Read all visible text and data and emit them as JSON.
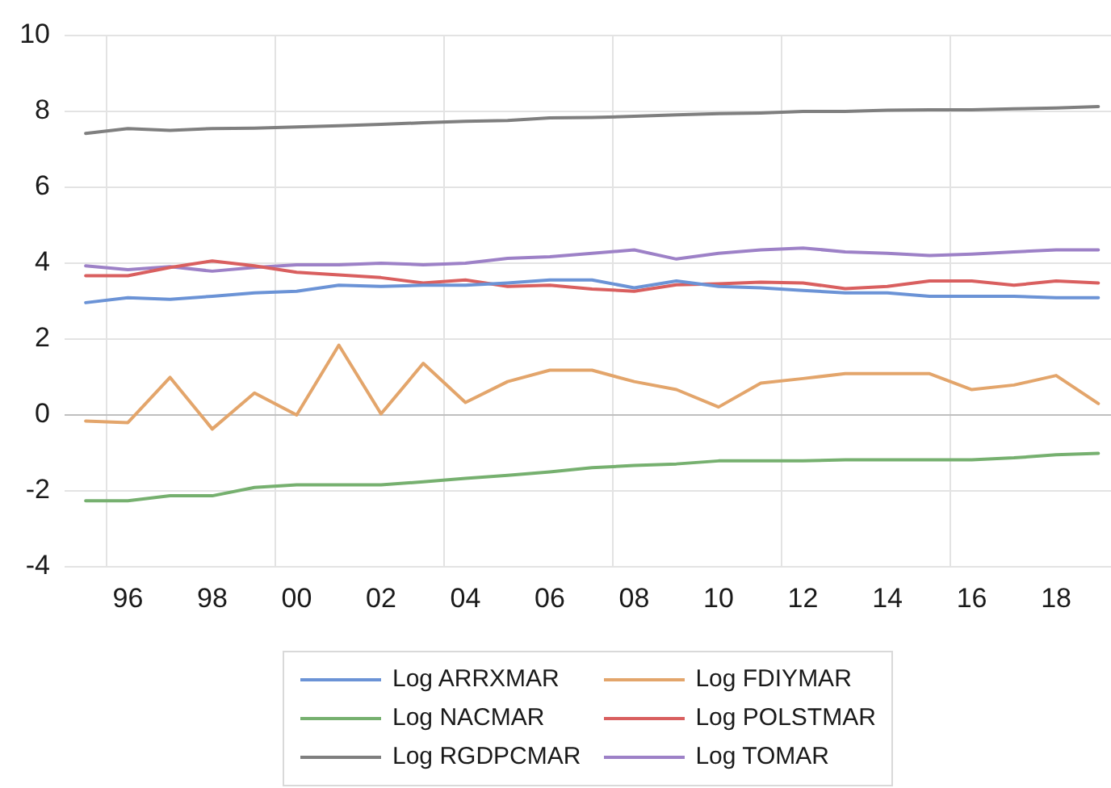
{
  "chart_data": {
    "type": "line",
    "x": [
      1995,
      1996,
      1997,
      1998,
      1999,
      2000,
      2001,
      2002,
      2003,
      2004,
      2005,
      2006,
      2007,
      2008,
      2009,
      2010,
      2011,
      2012,
      2013,
      2014,
      2015,
      2016,
      2017,
      2018,
      2019
    ],
    "xlim": [
      1994.5,
      2019.3
    ],
    "xticks": [
      {
        "value": 1995.5,
        "label": null
      },
      {
        "value": 1996,
        "label": "96"
      },
      {
        "value": 1998,
        "label": "98"
      },
      {
        "value": 1999.5,
        "label": null
      },
      {
        "value": 2000,
        "label": "00"
      },
      {
        "value": 2002,
        "label": "02"
      },
      {
        "value": 2003.5,
        "label": null
      },
      {
        "value": 2004,
        "label": "04"
      },
      {
        "value": 2006,
        "label": "06"
      },
      {
        "value": 2007.5,
        "label": null
      },
      {
        "value": 2008,
        "label": "08"
      },
      {
        "value": 2010,
        "label": "10"
      },
      {
        "value": 2011.5,
        "label": null
      },
      {
        "value": 2012,
        "label": "12"
      },
      {
        "value": 2014,
        "label": "14"
      },
      {
        "value": 2015.5,
        "label": null
      },
      {
        "value": 2016,
        "label": "16"
      },
      {
        "value": 2018,
        "label": "18"
      }
    ],
    "ylim": [
      -4,
      10
    ],
    "yticks": [
      -4,
      -2,
      0,
      2,
      4,
      6,
      8,
      10
    ],
    "grid": true,
    "legend": "bottom",
    "series": [
      {
        "name": "Log ARRXMAR",
        "color": "#6b93d6",
        "values": [
          2.96,
          3.09,
          3.05,
          3.13,
          3.22,
          3.26,
          3.42,
          3.39,
          3.42,
          3.42,
          3.48,
          3.56,
          3.56,
          3.35,
          3.53,
          3.39,
          3.35,
          3.28,
          3.22,
          3.22,
          3.13,
          3.13,
          3.13,
          3.09,
          3.09
        ]
      },
      {
        "name": "Log FDIYMAR",
        "color": "#e3a56b",
        "values": [
          -0.16,
          -0.2,
          0.99,
          -0.37,
          0.58,
          0.0,
          1.84,
          0.03,
          1.36,
          0.33,
          0.88,
          1.18,
          1.18,
          0.88,
          0.67,
          0.21,
          0.84,
          0.96,
          1.09,
          1.09,
          1.09,
          0.67,
          0.79,
          1.04,
          0.3
        ]
      },
      {
        "name": "Log NACMAR",
        "color": "#76b06f",
        "values": [
          -2.26,
          -2.26,
          -2.13,
          -2.13,
          -1.91,
          -1.84,
          -1.84,
          -1.84,
          -1.76,
          -1.67,
          -1.59,
          -1.5,
          -1.39,
          -1.33,
          -1.29,
          -1.21,
          -1.21,
          -1.21,
          -1.18,
          -1.18,
          -1.18,
          -1.18,
          -1.13,
          -1.05,
          -1.01
        ]
      },
      {
        "name": "Log POLSTMAR",
        "color": "#d95f5f",
        "values": [
          3.67,
          3.67,
          3.89,
          4.06,
          3.93,
          3.76,
          3.69,
          3.62,
          3.48,
          3.56,
          3.39,
          3.42,
          3.32,
          3.26,
          3.43,
          3.46,
          3.5,
          3.48,
          3.33,
          3.39,
          3.53,
          3.53,
          3.42,
          3.53,
          3.48
        ]
      },
      {
        "name": "Log RGDPCMAR",
        "color": "#7f7f7f",
        "values": [
          7.42,
          7.55,
          7.5,
          7.55,
          7.56,
          7.59,
          7.62,
          7.66,
          7.7,
          7.74,
          7.76,
          7.83,
          7.84,
          7.87,
          7.91,
          7.94,
          7.96,
          8.0,
          8.0,
          8.03,
          8.04,
          8.04,
          8.07,
          8.09,
          8.13
        ]
      },
      {
        "name": "Log TOMAR",
        "color": "#9d81c7",
        "values": [
          3.93,
          3.83,
          3.91,
          3.79,
          3.89,
          3.96,
          3.96,
          4.0,
          3.96,
          4.0,
          4.13,
          4.17,
          4.26,
          4.35,
          4.11,
          4.26,
          4.35,
          4.4,
          4.3,
          4.26,
          4.2,
          4.24,
          4.3,
          4.35,
          4.35
        ]
      }
    ]
  }
}
